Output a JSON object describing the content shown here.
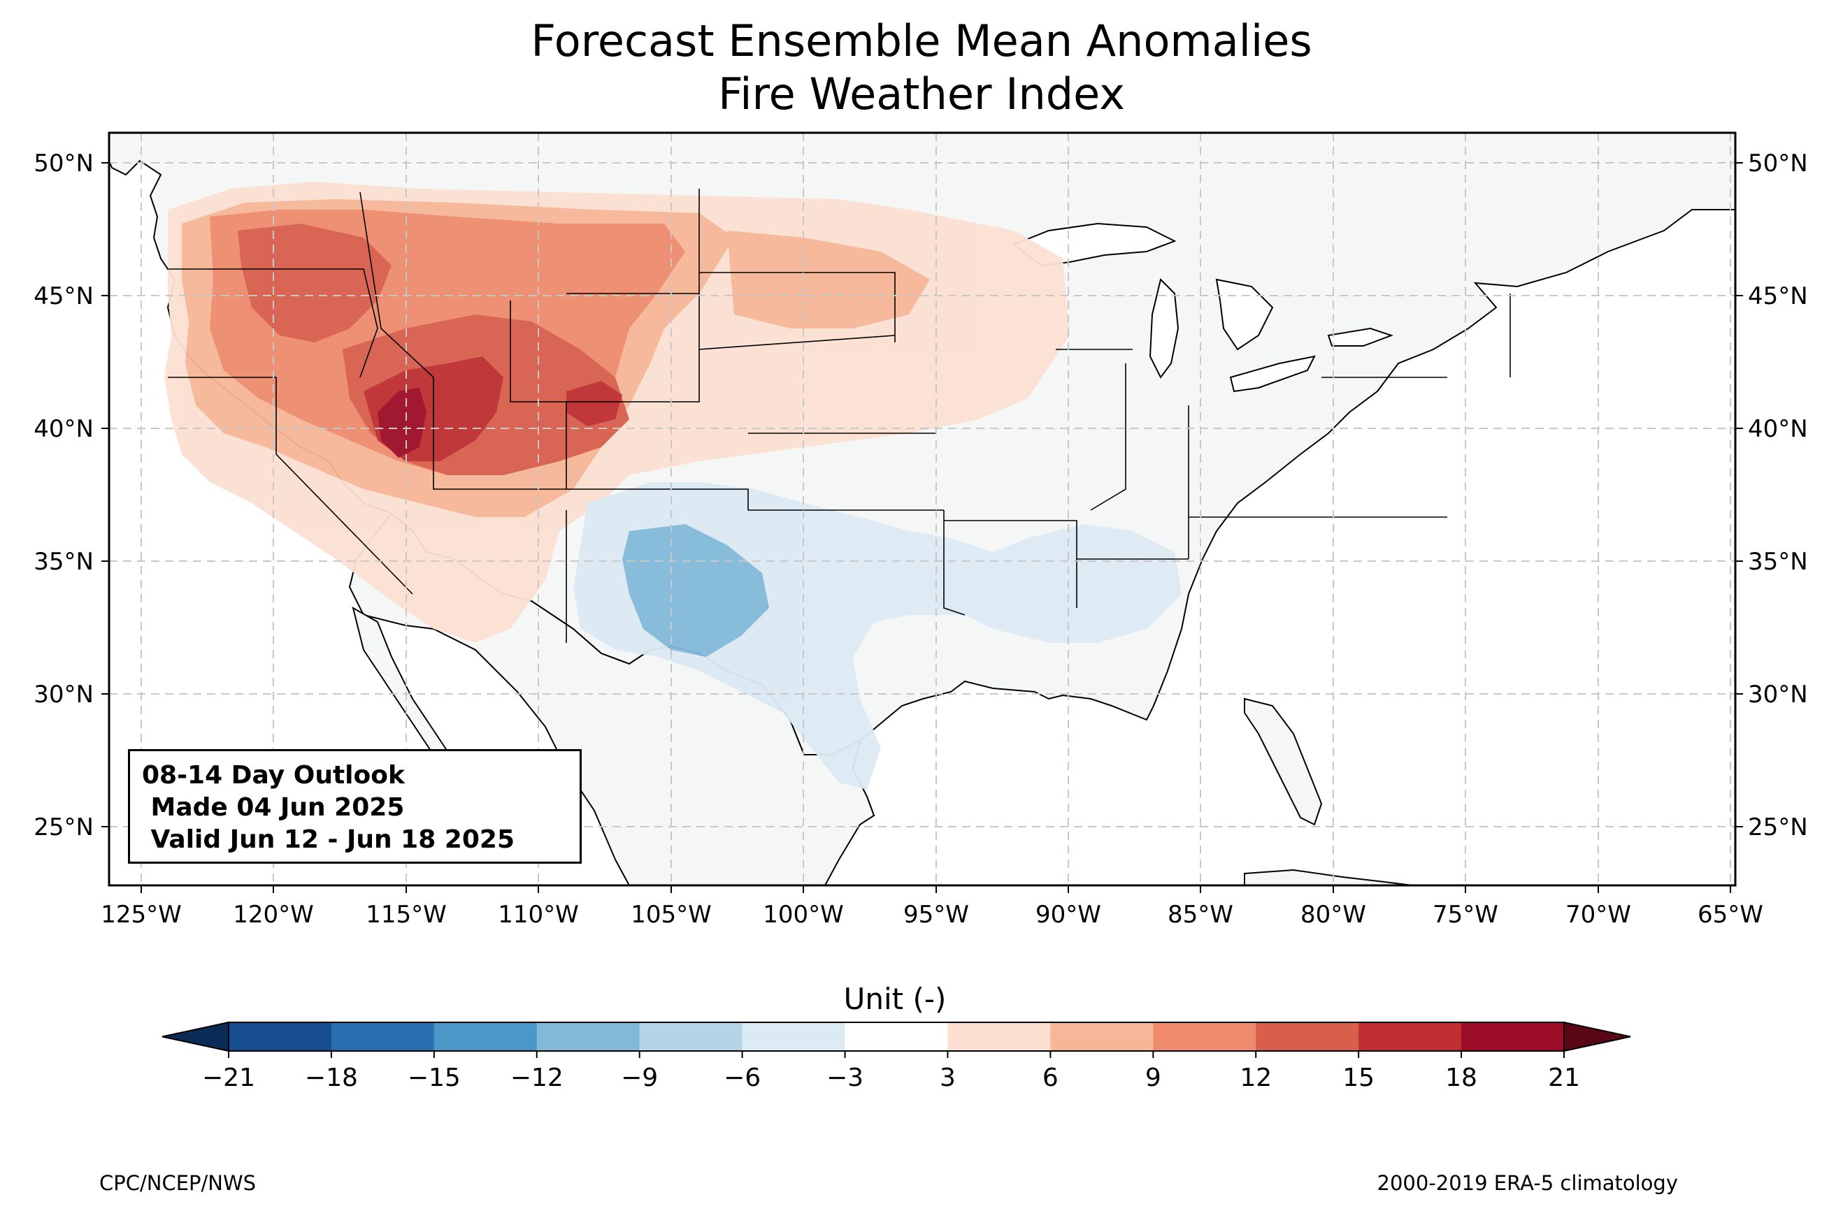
{
  "title": {
    "line1": "Forecast Ensemble Mean Anomalies",
    "line2": "Fire Weather Index"
  },
  "map": {
    "lon_range": [
      -126.3,
      -64.9
    ],
    "lat_range": [
      22.8,
      51.2
    ],
    "lon_ticks": [
      "125°W",
      "120°W",
      "115°W",
      "110°W",
      "105°W",
      "100°W",
      "95°W",
      "90°W",
      "85°W",
      "80°W",
      "75°W",
      "70°W",
      "65°W"
    ],
    "lat_ticks_left": [
      "50°N",
      "45°N",
      "40°N",
      "35°N",
      "30°N",
      "25°N"
    ],
    "lat_ticks_right": [
      "50°N",
      "45°N",
      "40°N",
      "35°N",
      "30°N",
      "25°N"
    ],
    "grid": "dashed",
    "land_color": "#f5f7f6",
    "anomaly_regions": [
      {
        "area": "Northern Rockies / Great Basin",
        "level": "6 to 12"
      },
      {
        "area": "Utah / Colorado core",
        "level": "15 to 21"
      },
      {
        "area": "Northern Plains",
        "level": "3 to 9"
      },
      {
        "area": "Southern High Plains / New Mexico",
        "level": "-3 to -12"
      },
      {
        "area": "Lower Mississippi Valley",
        "level": "-3 to -6"
      }
    ]
  },
  "outlook": {
    "line1": "08-14 Day Outlook",
    "line2": " Made 04 Jun 2025",
    "line3": " Valid Jun 12 - Jun 18 2025"
  },
  "colorbar": {
    "label": "Unit (-)",
    "ticks": [
      "−21",
      "−18",
      "−15",
      "−12",
      "−9",
      "−6",
      "−3",
      "3",
      "6",
      "9",
      "12",
      "15",
      "18",
      "21"
    ],
    "colors": [
      "#164e8f",
      "#2c6fb0",
      "#4b97c8",
      "#82b9d9",
      "#b6d4e8",
      "#dceaf4",
      "#ffffff",
      "#fbe0d2",
      "#f7b697",
      "#ee8b6d",
      "#d85f4c",
      "#bf2e31",
      "#9c0e27"
    ],
    "under_color": "#0b2b57",
    "over_color": "#5a0615"
  },
  "credits": {
    "left": "CPC/NCEP/NWS",
    "right": "2000-2019 ERA-5 climatology"
  }
}
